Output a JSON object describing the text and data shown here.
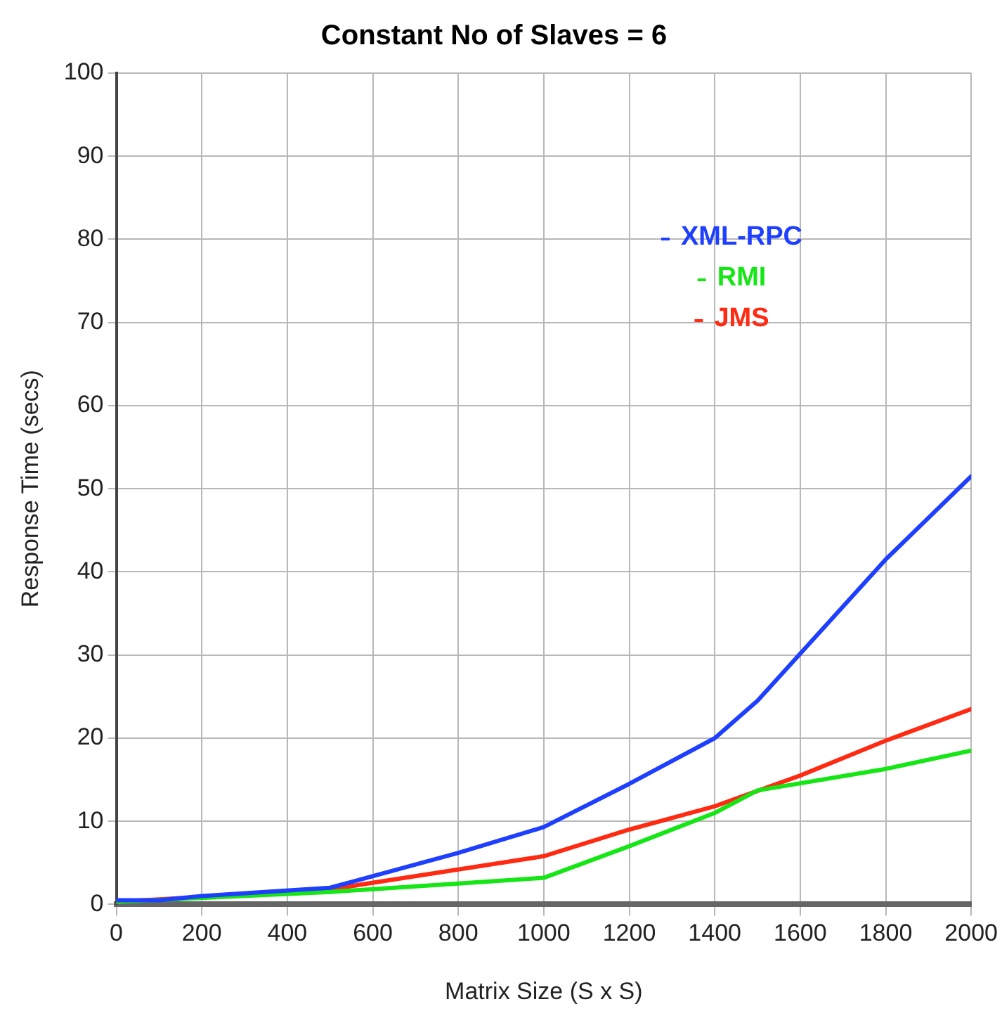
{
  "chart_data": {
    "type": "line",
    "title": "Constant No of Slaves = 6",
    "xlabel": "Matrix Size (S x S)",
    "ylabel": "Response Time (secs)",
    "xlim": [
      0,
      2000
    ],
    "xticks": [
      0,
      200,
      400,
      600,
      800,
      1000,
      1200,
      1400,
      1600,
      1800,
      2000
    ],
    "ylim": [
      0,
      100
    ],
    "yticks": [
      0,
      10,
      20,
      30,
      40,
      50,
      60,
      70,
      80,
      90,
      100
    ],
    "grid": true,
    "legend": "top right",
    "marker": "none",
    "line_style": "solid",
    "series": [
      {
        "name": "XML-RPC",
        "color": "#1f3fff",
        "x": [
          0,
          100,
          200,
          500,
          800,
          1000,
          1200,
          1400,
          1500,
          1650,
          1800,
          2000
        ],
        "values": [
          0.5,
          0.5,
          1,
          2,
          6.2,
          9.3,
          14.5,
          20,
          24.5,
          33,
          41.5,
          51.5
        ]
      },
      {
        "name": "RMI",
        "color": "#16e616",
        "x": [
          0,
          500,
          800,
          1000,
          1200,
          1400,
          1500,
          1800,
          2000
        ],
        "values": [
          0.3,
          1.5,
          2.5,
          3.2,
          7,
          11,
          13.7,
          16.3,
          18.5
        ]
      },
      {
        "name": "JMS",
        "color": "#ff2a12",
        "x": [
          0,
          500,
          800,
          1000,
          1200,
          1400,
          1600,
          1800,
          2000
        ],
        "values": [
          0.3,
          1.8,
          4.2,
          5.8,
          9,
          11.8,
          15.5,
          19.7,
          23.5
        ]
      }
    ]
  }
}
